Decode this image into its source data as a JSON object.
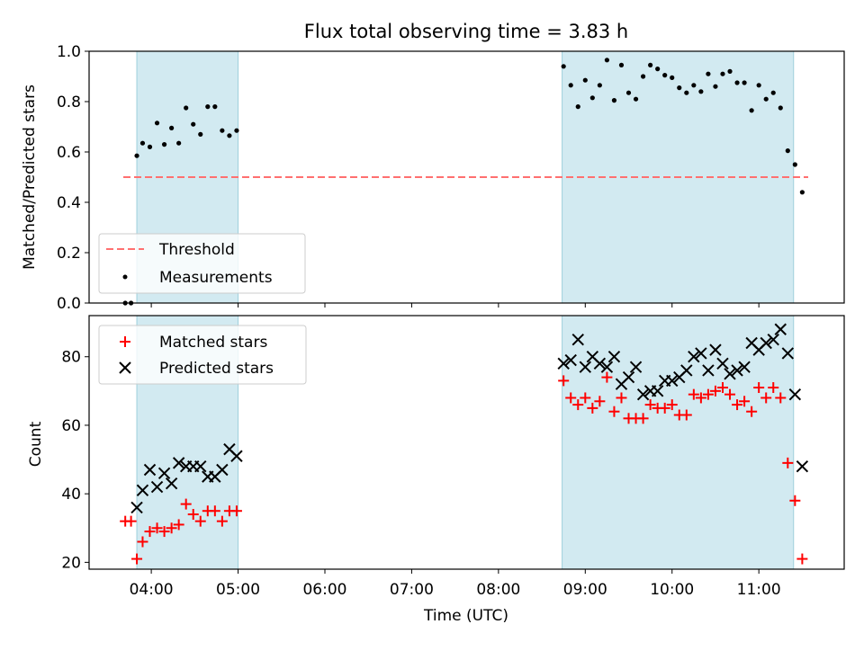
{
  "title": "Flux total observing time = 3.83 h",
  "chart_data": [
    {
      "type": "scatter",
      "ylabel": "Matched/Predicted stars",
      "ylim": [
        0,
        1.0
      ],
      "yticks": [
        "0.0",
        "0.2",
        "0.4",
        "0.6",
        "0.8",
        "1.0"
      ],
      "threshold": {
        "name": "Threshold",
        "value": 0.5,
        "color": "#ff7070"
      },
      "legend": {
        "placement": "lower-left"
      },
      "shaded_ranges": [
        [
          "03:50",
          "05:00"
        ],
        [
          "08:44",
          "11:24"
        ]
      ],
      "series": [
        {
          "name": "Measurements",
          "color": "#000000",
          "marker": "dot",
          "points": [
            [
              "03:42",
              0.0
            ],
            [
              "03:46",
              0.0
            ],
            [
              "03:50",
              0.585
            ],
            [
              "03:54",
              0.635
            ],
            [
              "03:59",
              0.62
            ],
            [
              "04:04",
              0.715
            ],
            [
              "04:09",
              0.63
            ],
            [
              "04:14",
              0.695
            ],
            [
              "04:19",
              0.635
            ],
            [
              "04:24",
              0.775
            ],
            [
              "04:29",
              0.71
            ],
            [
              "04:34",
              0.67
            ],
            [
              "04:39",
              0.78
            ],
            [
              "04:44",
              0.78
            ],
            [
              "04:49",
              0.685
            ],
            [
              "04:54",
              0.665
            ],
            [
              "04:59",
              0.685
            ],
            [
              "08:45",
              0.94
            ],
            [
              "08:50",
              0.865
            ],
            [
              "08:55",
              0.78
            ],
            [
              "09:00",
              0.885
            ],
            [
              "09:05",
              0.815
            ],
            [
              "09:10",
              0.865
            ],
            [
              "09:15",
              0.965
            ],
            [
              "09:20",
              0.805
            ],
            [
              "09:25",
              0.945
            ],
            [
              "09:30",
              0.835
            ],
            [
              "09:35",
              0.81
            ],
            [
              "09:40",
              0.9
            ],
            [
              "09:45",
              0.945
            ],
            [
              "09:50",
              0.93
            ],
            [
              "09:55",
              0.905
            ],
            [
              "10:00",
              0.895
            ],
            [
              "10:05",
              0.855
            ],
            [
              "10:10",
              0.835
            ],
            [
              "10:15",
              0.865
            ],
            [
              "10:20",
              0.84
            ],
            [
              "10:25",
              0.91
            ],
            [
              "10:30",
              0.86
            ],
            [
              "10:35",
              0.91
            ],
            [
              "10:40",
              0.92
            ],
            [
              "10:45",
              0.875
            ],
            [
              "10:50",
              0.875
            ],
            [
              "10:55",
              0.765
            ],
            [
              "11:00",
              0.865
            ],
            [
              "11:05",
              0.81
            ],
            [
              "11:10",
              0.835
            ],
            [
              "11:15",
              0.775
            ],
            [
              "11:20",
              0.605
            ],
            [
              "11:25",
              0.55
            ],
            [
              "11:30",
              0.44
            ]
          ]
        }
      ]
    },
    {
      "type": "scatter",
      "xlabel": "Time (UTC)",
      "ylabel": "Count",
      "ylim": [
        18,
        92
      ],
      "yticks": [
        "20",
        "40",
        "60",
        "80"
      ],
      "xticks": [
        "04:00",
        "05:00",
        "06:00",
        "07:00",
        "08:00",
        "09:00",
        "10:00",
        "11:00"
      ],
      "xlim": [
        "03:17",
        "11:59"
      ],
      "legend": {
        "placement": "upper-left"
      },
      "shaded_ranges": [
        [
          "03:50",
          "05:00"
        ],
        [
          "08:44",
          "11:24"
        ]
      ],
      "series": [
        {
          "name": "Matched stars",
          "color": "#ff0000",
          "marker": "plus",
          "points": [
            [
              "03:42",
              32
            ],
            [
              "03:46",
              32
            ],
            [
              "03:50",
              21
            ],
            [
              "03:54",
              26
            ],
            [
              "03:59",
              29
            ],
            [
              "04:04",
              30
            ],
            [
              "04:09",
              29
            ],
            [
              "04:14",
              30
            ],
            [
              "04:19",
              31
            ],
            [
              "04:24",
              37
            ],
            [
              "04:29",
              34
            ],
            [
              "04:34",
              32
            ],
            [
              "04:39",
              35
            ],
            [
              "04:44",
              35
            ],
            [
              "04:49",
              32
            ],
            [
              "04:54",
              35
            ],
            [
              "04:59",
              35
            ],
            [
              "08:45",
              73
            ],
            [
              "08:50",
              68
            ],
            [
              "08:55",
              66
            ],
            [
              "09:00",
              68
            ],
            [
              "09:05",
              65
            ],
            [
              "09:10",
              67
            ],
            [
              "09:15",
              74
            ],
            [
              "09:20",
              64
            ],
            [
              "09:25",
              68
            ],
            [
              "09:30",
              62
            ],
            [
              "09:35",
              62
            ],
            [
              "09:40",
              62
            ],
            [
              "09:45",
              66
            ],
            [
              "09:50",
              65
            ],
            [
              "09:55",
              65
            ],
            [
              "10:00",
              66
            ],
            [
              "10:05",
              63
            ],
            [
              "10:10",
              63
            ],
            [
              "10:15",
              69
            ],
            [
              "10:20",
              68
            ],
            [
              "10:25",
              69
            ],
            [
              "10:30",
              70
            ],
            [
              "10:35",
              71
            ],
            [
              "10:40",
              69
            ],
            [
              "10:45",
              66
            ],
            [
              "10:50",
              67
            ],
            [
              "10:55",
              64
            ],
            [
              "11:00",
              71
            ],
            [
              "11:05",
              68
            ],
            [
              "11:10",
              71
            ],
            [
              "11:15",
              68
            ],
            [
              "11:20",
              49
            ],
            [
              "11:25",
              38
            ],
            [
              "11:30",
              21
            ]
          ]
        },
        {
          "name": "Predicted stars",
          "color": "#000000",
          "marker": "cross",
          "points": [
            [
              "03:50",
              36
            ],
            [
              "03:54",
              41
            ],
            [
              "03:59",
              47
            ],
            [
              "04:04",
              42
            ],
            [
              "04:09",
              46
            ],
            [
              "04:14",
              43
            ],
            [
              "04:19",
              49
            ],
            [
              "04:24",
              48
            ],
            [
              "04:29",
              48
            ],
            [
              "04:34",
              48
            ],
            [
              "04:39",
              45
            ],
            [
              "04:44",
              45
            ],
            [
              "04:49",
              47
            ],
            [
              "04:54",
              53
            ],
            [
              "04:59",
              51
            ],
            [
              "08:45",
              78
            ],
            [
              "08:50",
              79
            ],
            [
              "08:55",
              85
            ],
            [
              "09:00",
              77
            ],
            [
              "09:05",
              80
            ],
            [
              "09:10",
              78
            ],
            [
              "09:15",
              77
            ],
            [
              "09:20",
              80
            ],
            [
              "09:25",
              72
            ],
            [
              "09:30",
              74
            ],
            [
              "09:35",
              77
            ],
            [
              "09:40",
              69
            ],
            [
              "09:45",
              70
            ],
            [
              "09:50",
              70
            ],
            [
              "09:55",
              73
            ],
            [
              "10:00",
              73
            ],
            [
              "10:05",
              74
            ],
            [
              "10:10",
              76
            ],
            [
              "10:15",
              80
            ],
            [
              "10:20",
              81
            ],
            [
              "10:25",
              76
            ],
            [
              "10:30",
              82
            ],
            [
              "10:35",
              78
            ],
            [
              "10:40",
              75
            ],
            [
              "10:45",
              76
            ],
            [
              "10:50",
              77
            ],
            [
              "10:55",
              84
            ],
            [
              "11:00",
              82
            ],
            [
              "11:05",
              84
            ],
            [
              "11:10",
              85
            ],
            [
              "11:15",
              88
            ],
            [
              "11:20",
              81
            ],
            [
              "11:25",
              69
            ],
            [
              "11:30",
              48
            ]
          ]
        }
      ]
    }
  ]
}
